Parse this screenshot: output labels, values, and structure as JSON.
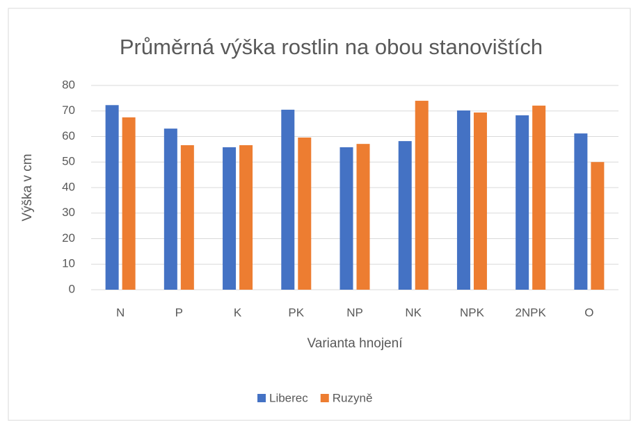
{
  "chart_data": {
    "type": "bar",
    "title": "Průměrná výška rostlin na obou stanovištích",
    "x_label": "Varianta hnojení",
    "y_label": "Výška v cm",
    "categories": [
      "N",
      "P",
      "K",
      "PK",
      "NP",
      "NK",
      "NPK",
      "2NPK",
      "O"
    ],
    "series": [
      {
        "name": "Liberec",
        "color": "#4472c4",
        "values": [
          72.3,
          63.1,
          55.8,
          70.5,
          55.8,
          58.2,
          70.2,
          68.3,
          61.2
        ]
      },
      {
        "name": "Ruzyně",
        "color": "#ed7d31",
        "values": [
          67.5,
          56.6,
          56.6,
          59.6,
          57.1,
          74.0,
          69.4,
          72.1,
          50.0
        ]
      }
    ],
    "ylim": [
      0,
      80
    ],
    "yticks": [
      0,
      10,
      20,
      30,
      40,
      50,
      60,
      70,
      80
    ],
    "grid": true,
    "legend": "bottom"
  }
}
